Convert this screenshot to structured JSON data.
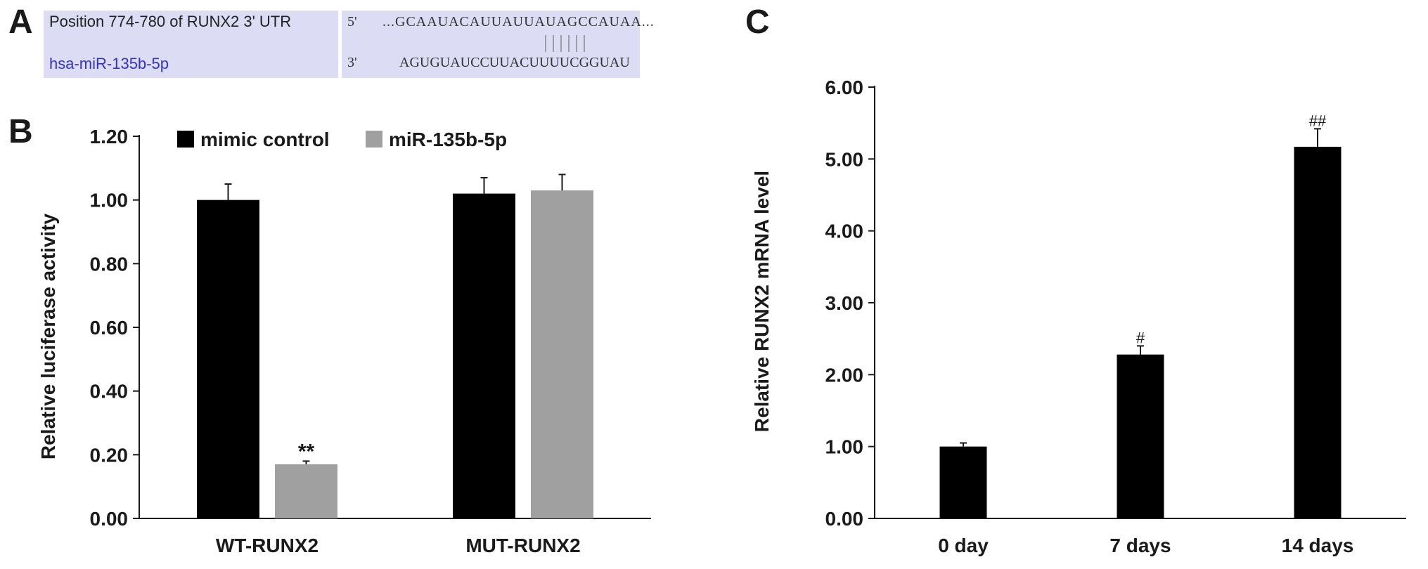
{
  "panels": {
    "a": "A",
    "b": "B",
    "c": "C"
  },
  "sequence": {
    "position_label": "Position 774-780 of RUNX2 3' UTR",
    "mirna_label": "hsa-miR-135b-5p",
    "top_prime": "5'",
    "top_seq": "...GCAAUACAUUAUUAUAGCCAUAA...",
    "bottom_prime": "3'",
    "bottom_seq": "AGUGUAUCCUUACUUUUCGGUAU",
    "pairing_count": 6,
    "label_color": "#3333cc",
    "box_color": "#dcdcf4"
  },
  "chart_data": [
    {
      "type": "bar",
      "panel": "B",
      "categories": [
        "WT-RUNX2",
        "MUT-RUNX2"
      ],
      "series": [
        {
          "name": "mimic control",
          "values": [
            1.0,
            1.02
          ],
          "errors": [
            0.05,
            0.05
          ],
          "color": "#000000",
          "annotations": [
            "",
            ""
          ]
        },
        {
          "name": "miR-135b-5p",
          "values": [
            0.17,
            1.03
          ],
          "errors": [
            0.01,
            0.05
          ],
          "color": "#a0a0a0",
          "annotations": [
            "**",
            ""
          ]
        }
      ],
      "ylabel": "Relative luciferase activity",
      "ylim": [
        0,
        1.2
      ],
      "yticks": [
        "0.00",
        "0.20",
        "0.40",
        "0.60",
        "0.80",
        "1.00",
        "1.20"
      ],
      "legend": "top"
    },
    {
      "type": "bar",
      "panel": "C",
      "categories": [
        "0 day",
        "7 days",
        "14 days"
      ],
      "series": [
        {
          "name": "",
          "values": [
            1.0,
            2.28,
            5.17
          ],
          "errors": [
            0.05,
            0.12,
            0.25
          ],
          "color": "#000000",
          "annotations": [
            "",
            "#",
            "##"
          ]
        }
      ],
      "ylabel": "Relative RUNX2 mRNA level",
      "ylim": [
        0,
        6
      ],
      "yticks": [
        "0.00",
        "1.00",
        "2.00",
        "3.00",
        "4.00",
        "5.00",
        "6.00"
      ]
    }
  ]
}
